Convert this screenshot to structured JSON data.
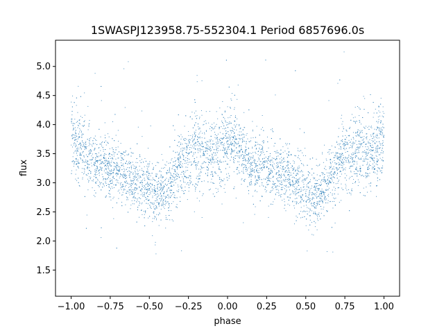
{
  "chart_data": {
    "type": "scatter",
    "title": "1SWASPJ123958.75-552304.1 Period 6857696.0s",
    "xlabel": "phase",
    "ylabel": "flux",
    "xlim": [
      -1.1,
      1.1
    ],
    "ylim": [
      1.05,
      5.45
    ],
    "x_ticks": [
      -1.0,
      -0.75,
      -0.5,
      -0.25,
      0.0,
      0.25,
      0.5,
      0.75,
      1.0
    ],
    "x_tick_labels": [
      "−1.00",
      "−0.75",
      "−0.50",
      "−0.25",
      "0.00",
      "0.25",
      "0.50",
      "0.75",
      "1.00"
    ],
    "y_ticks": [
      1.5,
      2.0,
      2.5,
      3.0,
      3.5,
      4.0,
      4.5,
      5.0
    ],
    "y_tick_labels": [
      "1.5",
      "2.0",
      "2.5",
      "3.0",
      "3.5",
      "4.0",
      "4.5",
      "5.0"
    ],
    "grid": false,
    "legend": false,
    "marker_color": "#1f77b4",
    "phase_profile": {
      "phase": [
        0.0,
        0.05,
        0.1,
        0.15,
        0.2,
        0.25,
        0.3,
        0.35,
        0.4,
        0.45,
        0.5,
        0.55,
        0.6,
        0.65,
        0.7,
        0.75,
        0.8,
        0.85,
        0.9,
        0.95,
        1.0
      ],
      "mean_flux": [
        3.85,
        3.65,
        3.45,
        3.3,
        3.3,
        3.25,
        3.2,
        3.15,
        3.05,
        3.0,
        2.9,
        2.75,
        2.85,
        3.05,
        3.3,
        3.45,
        3.6,
        3.5,
        3.45,
        3.55,
        3.75
      ],
      "scatter": [
        0.35,
        0.3,
        0.28,
        0.25,
        0.25,
        0.25,
        0.25,
        0.25,
        0.25,
        0.25,
        0.25,
        0.25,
        0.25,
        0.28,
        0.3,
        0.3,
        0.35,
        0.3,
        0.3,
        0.35,
        0.35
      ]
    }
  }
}
